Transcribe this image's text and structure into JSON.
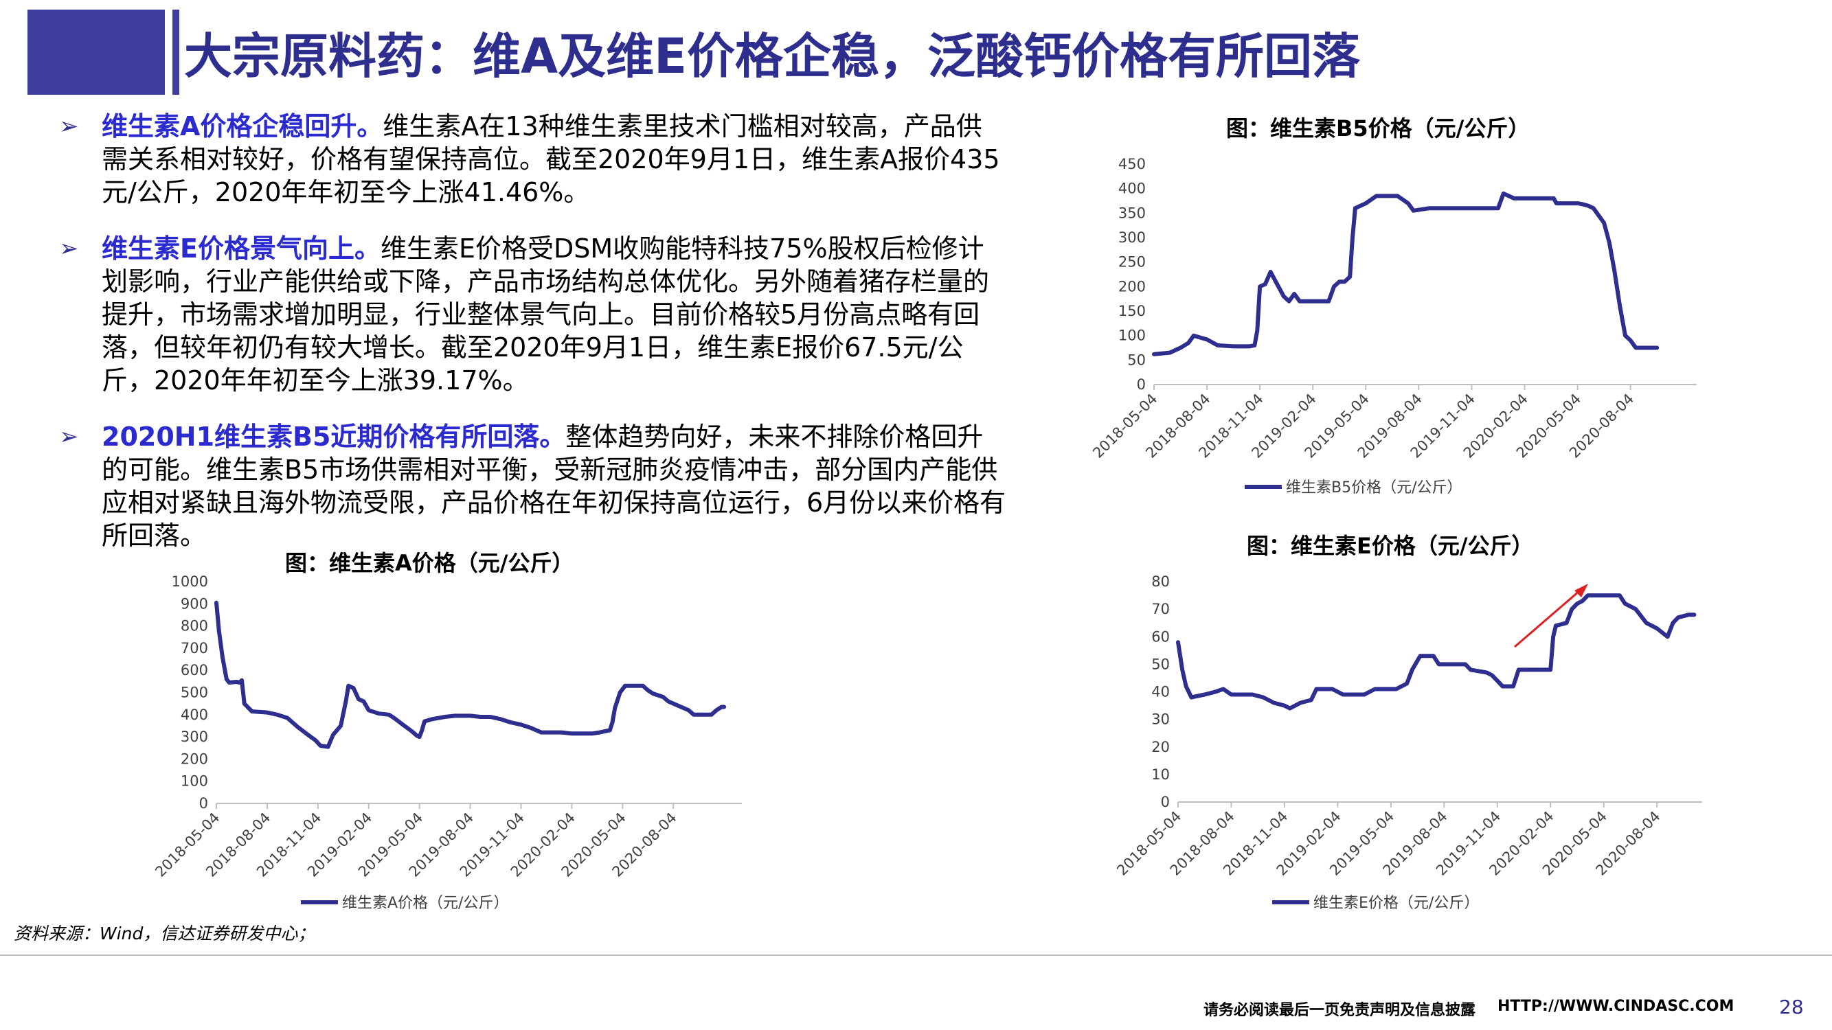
{
  "header": {
    "title": "大宗原料药：维A及维E价格企稳，泛酸钙价格有所回落",
    "brand_color": "#3f3f9f"
  },
  "bullets": [
    {
      "lead": "维生素A价格企稳回升。",
      "text": "维生素A在13种维生素里技术门槛相对较高，产品供需关系相对较好，价格有望保持高位。截至2020年9月1日，维生素A报价435元/公斤，2020年年初至今上涨41.46%。"
    },
    {
      "lead": "维生素E价格景气向上。",
      "text": "维生素E价格受DSM收购能特科技75%股权后检修计划影响，行业产能供给或下降，产品市场结构总体优化。另外随着猪存栏量的提升，市场需求增加明显，行业整体景气向上。目前价格较5月份高点略有回落，但较年初仍有较大增长。截至2020年9月1日，维生素E报价67.5元/公斤，2020年年初至今上涨39.17%。"
    },
    {
      "lead": "2020H1维生素B5近期价格有所回落。",
      "text": "整体趋势向好，未来不排除价格回升的可能。维生素B5市场供需相对平衡，受新冠肺炎疫情冲击，部分国内产能供应相对紧缺且海外物流受限，产品价格在年初保持高位运行，6月份以来价格有所回落。"
    }
  ],
  "chart_data": [
    {
      "id": "vitA",
      "type": "line",
      "title": "图：维生素A价格（元/公斤）",
      "legend": "维生素A价格（元/公斤）",
      "categories": [
        "2018-05-04",
        "2018-08-04",
        "2018-11-04",
        "2019-02-04",
        "2019-05-04",
        "2019-08-04",
        "2019-11-04",
        "2020-02-04",
        "2020-05-04",
        "2020-08-04"
      ],
      "ylim": [
        0,
        1000
      ],
      "yticks": [
        0,
        100,
        200,
        300,
        400,
        500,
        600,
        700,
        800,
        900,
        1000
      ],
      "color": "#2e2e8f",
      "points": [
        [
          0,
          905
        ],
        [
          0.05,
          780
        ],
        [
          0.12,
          660
        ],
        [
          0.2,
          560
        ],
        [
          0.25,
          545
        ],
        [
          0.4,
          548
        ],
        [
          0.45,
          545
        ],
        [
          0.5,
          555
        ],
        [
          0.55,
          450
        ],
        [
          0.7,
          415
        ],
        [
          1.0,
          410
        ],
        [
          1.2,
          400
        ],
        [
          1.4,
          385
        ],
        [
          1.6,
          345
        ],
        [
          1.8,
          310
        ],
        [
          1.95,
          285
        ],
        [
          2.05,
          260
        ],
        [
          2.2,
          255
        ],
        [
          2.3,
          310
        ],
        [
          2.45,
          350
        ],
        [
          2.55,
          460
        ],
        [
          2.6,
          530
        ],
        [
          2.7,
          520
        ],
        [
          2.8,
          470
        ],
        [
          2.9,
          460
        ],
        [
          3.0,
          420
        ],
        [
          3.2,
          405
        ],
        [
          3.4,
          400
        ],
        [
          3.5,
          385
        ],
        [
          3.7,
          350
        ],
        [
          3.85,
          325
        ],
        [
          3.95,
          305
        ],
        [
          4.0,
          300
        ],
        [
          4.05,
          330
        ],
        [
          4.1,
          370
        ],
        [
          4.25,
          380
        ],
        [
          4.5,
          390
        ],
        [
          4.7,
          395
        ],
        [
          5.0,
          395
        ],
        [
          5.2,
          390
        ],
        [
          5.4,
          390
        ],
        [
          5.6,
          380
        ],
        [
          5.8,
          365
        ],
        [
          6.0,
          355
        ],
        [
          6.2,
          340
        ],
        [
          6.4,
          320
        ],
        [
          6.8,
          320
        ],
        [
          7.0,
          315
        ],
        [
          7.4,
          315
        ],
        [
          7.55,
          320
        ],
        [
          7.75,
          330
        ],
        [
          7.8,
          365
        ],
        [
          7.85,
          430
        ],
        [
          7.95,
          500
        ],
        [
          8.05,
          530
        ],
        [
          8.4,
          530
        ],
        [
          8.5,
          510
        ],
        [
          8.6,
          495
        ],
        [
          8.8,
          480
        ],
        [
          8.9,
          460
        ],
        [
          9.1,
          440
        ],
        [
          9.3,
          420
        ],
        [
          9.4,
          400
        ],
        [
          9.75,
          400
        ],
        [
          9.85,
          420
        ],
        [
          9.95,
          435
        ],
        [
          10.0,
          435
        ]
      ]
    },
    {
      "id": "vitB5",
      "type": "line",
      "title": "图：维生素B5价格（元/公斤）",
      "legend": "维生素B5价格（元/公斤）",
      "categories": [
        "2018-05-04",
        "2018-08-04",
        "2018-11-04",
        "2019-02-04",
        "2019-05-04",
        "2019-08-04",
        "2019-11-04",
        "2020-02-04",
        "2020-05-04",
        "2020-08-04"
      ],
      "ylim": [
        0,
        450
      ],
      "yticks": [
        0,
        50,
        100,
        150,
        200,
        250,
        300,
        350,
        400,
        450
      ],
      "color": "#2e2e8f",
      "points": [
        [
          0,
          62
        ],
        [
          0.3,
          65
        ],
        [
          0.5,
          75
        ],
        [
          0.65,
          85
        ],
        [
          0.75,
          100
        ],
        [
          0.9,
          95
        ],
        [
          1.0,
          92
        ],
        [
          1.2,
          80
        ],
        [
          1.5,
          78
        ],
        [
          1.8,
          78
        ],
        [
          1.9,
          80
        ],
        [
          1.95,
          110
        ],
        [
          2.0,
          200
        ],
        [
          2.1,
          205
        ],
        [
          2.2,
          230
        ],
        [
          2.35,
          200
        ],
        [
          2.45,
          180
        ],
        [
          2.55,
          170
        ],
        [
          2.65,
          185
        ],
        [
          2.75,
          170
        ],
        [
          3.0,
          170
        ],
        [
          3.3,
          170
        ],
        [
          3.4,
          200
        ],
        [
          3.5,
          210
        ],
        [
          3.6,
          210
        ],
        [
          3.7,
          220
        ],
        [
          3.75,
          300
        ],
        [
          3.8,
          360
        ],
        [
          4.0,
          370
        ],
        [
          4.2,
          385
        ],
        [
          4.4,
          385
        ],
        [
          4.6,
          385
        ],
        [
          4.8,
          370
        ],
        [
          4.9,
          355
        ],
        [
          5.2,
          360
        ],
        [
          5.6,
          360
        ],
        [
          6.0,
          360
        ],
        [
          6.5,
          360
        ],
        [
          6.6,
          390
        ],
        [
          6.8,
          380
        ],
        [
          7.2,
          380
        ],
        [
          7.55,
          380
        ],
        [
          7.6,
          370
        ],
        [
          8.0,
          370
        ],
        [
          8.1,
          368
        ],
        [
          8.2,
          365
        ],
        [
          8.3,
          360
        ],
        [
          8.5,
          330
        ],
        [
          8.6,
          290
        ],
        [
          8.7,
          230
        ],
        [
          8.8,
          160
        ],
        [
          8.9,
          100
        ],
        [
          9.0,
          90
        ],
        [
          9.1,
          75
        ],
        [
          9.5,
          75
        ]
      ]
    },
    {
      "id": "vitE",
      "type": "line",
      "title": "图：维生素E价格（元/公斤）",
      "legend": "维生素E价格（元/公斤）",
      "categories": [
        "2018-05-04",
        "2018-08-04",
        "2018-11-04",
        "2019-02-04",
        "2019-05-04",
        "2019-08-04",
        "2019-11-04",
        "2020-02-04",
        "2020-05-04",
        "2020-08-04"
      ],
      "ylim": [
        0,
        80
      ],
      "yticks": [
        0,
        10,
        20,
        30,
        40,
        50,
        60,
        70,
        80
      ],
      "color": "#2e2e8f",
      "points": [
        [
          0,
          58
        ],
        [
          0.08,
          48
        ],
        [
          0.15,
          42
        ],
        [
          0.25,
          38
        ],
        [
          0.5,
          39
        ],
        [
          0.7,
          40
        ],
        [
          0.85,
          41
        ],
        [
          1.0,
          39
        ],
        [
          1.4,
          39
        ],
        [
          1.6,
          38
        ],
        [
          1.8,
          36
        ],
        [
          2.0,
          35
        ],
        [
          2.1,
          34
        ],
        [
          2.3,
          36
        ],
        [
          2.5,
          37
        ],
        [
          2.6,
          41
        ],
        [
          2.9,
          41
        ],
        [
          3.1,
          39
        ],
        [
          3.5,
          39
        ],
        [
          3.7,
          41
        ],
        [
          4.1,
          41
        ],
        [
          4.3,
          43
        ],
        [
          4.4,
          48
        ],
        [
          4.55,
          53
        ],
        [
          4.8,
          53
        ],
        [
          4.9,
          50
        ],
        [
          5.4,
          50
        ],
        [
          5.5,
          48
        ],
        [
          5.8,
          47
        ],
        [
          5.9,
          46
        ],
        [
          6.0,
          44
        ],
        [
          6.1,
          42
        ],
        [
          6.3,
          42
        ],
        [
          6.35,
          45
        ],
        [
          6.4,
          48
        ],
        [
          6.6,
          48
        ],
        [
          7.0,
          48
        ],
        [
          7.05,
          60
        ],
        [
          7.1,
          64
        ],
        [
          7.3,
          65
        ],
        [
          7.4,
          70
        ],
        [
          7.5,
          72
        ],
        [
          7.6,
          73
        ],
        [
          7.7,
          75
        ],
        [
          8.3,
          75
        ],
        [
          8.4,
          72
        ],
        [
          8.6,
          70
        ],
        [
          8.8,
          65
        ],
        [
          9.0,
          63
        ],
        [
          9.2,
          60
        ],
        [
          9.3,
          65
        ],
        [
          9.4,
          67
        ],
        [
          9.6,
          68
        ],
        [
          9.7,
          68
        ]
      ]
    }
  ],
  "annotation": {
    "arrow_label": "",
    "arrow_color": "#e02020"
  },
  "source": "资料来源：Wind，信达证券研发中心；",
  "footer": {
    "disclaimer": "请务必阅读最后一页免责声明及信息披露",
    "url": "HTTP://WWW.CINDASC.COM",
    "page": "28"
  }
}
